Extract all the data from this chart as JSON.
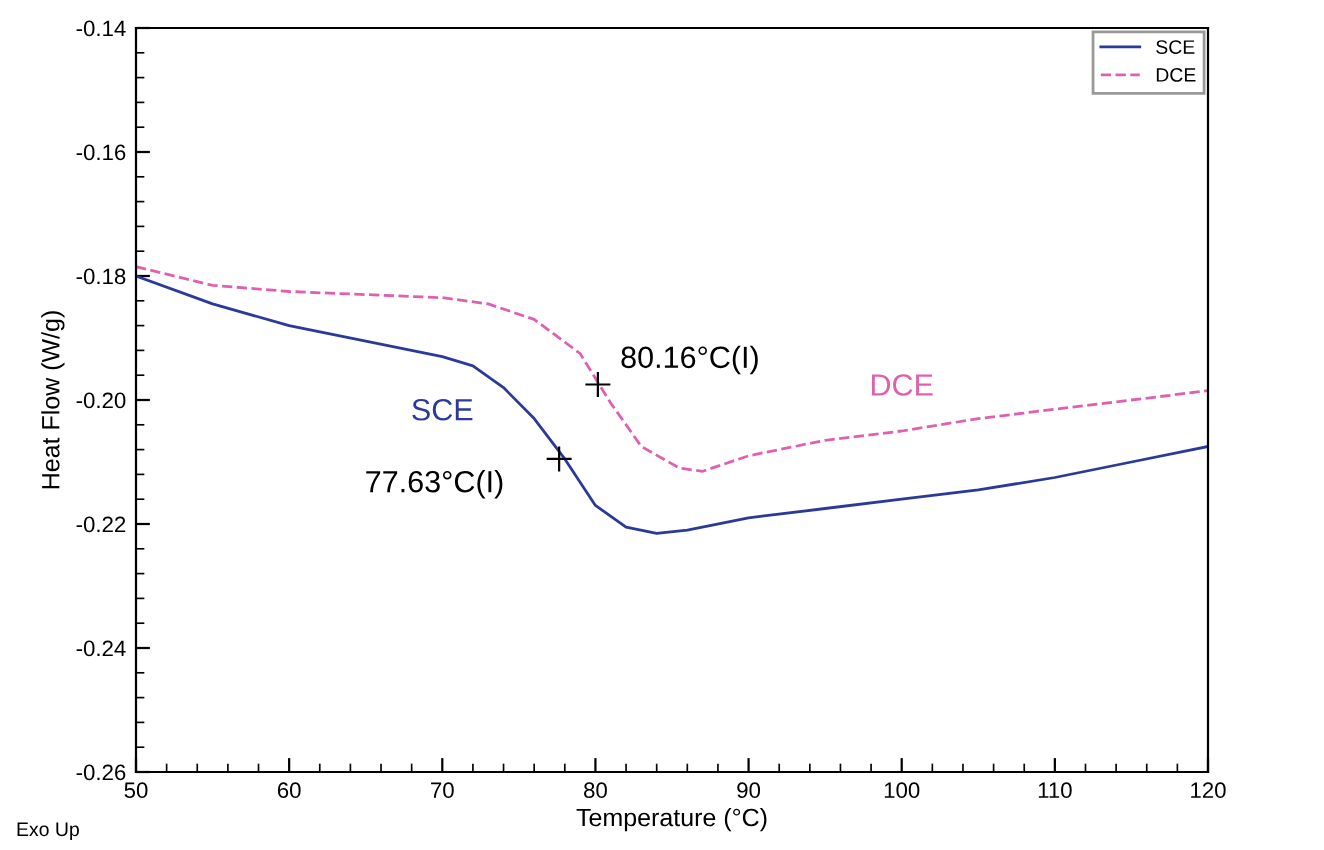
{
  "chart_data": {
    "type": "line",
    "xlabel": "Temperature (°C)",
    "ylabel": "Heat Flow (W/g)",
    "xlim": [
      50,
      120
    ],
    "ylim": [
      -0.26,
      -0.14
    ],
    "xticks": [
      50,
      60,
      70,
      80,
      90,
      100,
      110,
      120
    ],
    "yticks": [
      {
        "value": -0.26,
        "label": "-0.26"
      },
      {
        "value": -0.24,
        "label": "-0.24"
      },
      {
        "value": -0.22,
        "label": "-0.22"
      },
      {
        "value": -0.2,
        "label": "-0.20"
      },
      {
        "value": -0.18,
        "label": "-0.18"
      },
      {
        "value": -0.16,
        "label": "-0.16"
      },
      {
        "value": -0.14,
        "label": "-0.14"
      }
    ],
    "grid": false,
    "legend": "top right",
    "series": [
      {
        "name": "SCE",
        "color": "#2b3a9a",
        "line_style": "solid",
        "x": [
          50,
          55,
          60,
          65,
          70,
          72,
          74,
          76,
          78,
          80,
          82,
          84,
          86,
          90,
          95,
          100,
          105,
          110,
          115,
          120
        ],
        "values": [
          -0.18,
          -0.1845,
          -0.188,
          -0.1905,
          -0.193,
          -0.1945,
          -0.198,
          -0.203,
          -0.2095,
          -0.217,
          -0.2205,
          -0.2215,
          -0.221,
          -0.219,
          -0.2175,
          -0.216,
          -0.2145,
          -0.2125,
          -0.21,
          -0.2075
        ]
      },
      {
        "name": "DCE",
        "color": "#e060b0",
        "line_style": "dashed",
        "x": [
          50,
          55,
          60,
          65,
          70,
          73,
          76,
          79,
          80,
          81,
          83,
          85.5,
          87,
          90,
          95,
          100,
          105,
          110,
          115,
          120
        ],
        "values": [
          -0.1785,
          -0.1815,
          -0.1825,
          -0.183,
          -0.1835,
          -0.1845,
          -0.187,
          -0.1925,
          -0.1965,
          -0.2005,
          -0.2075,
          -0.211,
          -0.2115,
          -0.209,
          -0.2065,
          -0.205,
          -0.203,
          -0.2015,
          -0.2,
          -0.1985
        ]
      }
    ],
    "annotations": [
      {
        "text": "80.16°C(I)",
        "x": 80.16,
        "y": -0.1975
      },
      {
        "text": "77.63°C(I)",
        "x": 77.63,
        "y": -0.2095
      },
      "Exo Up"
    ]
  }
}
